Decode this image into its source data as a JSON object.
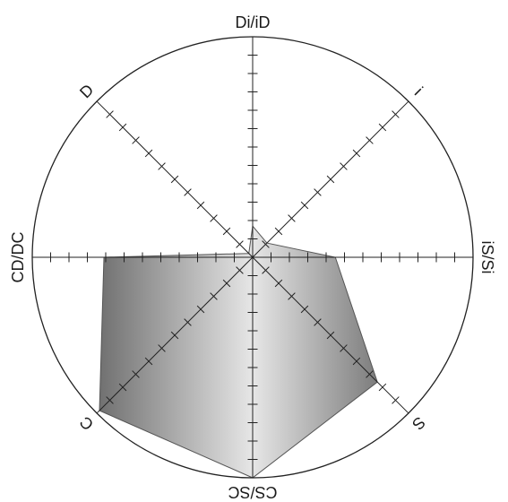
{
  "chart_data": {
    "type": "radar",
    "title": "",
    "axes": [
      {
        "label": "Di/iD",
        "angle_deg": 0
      },
      {
        "label": "i",
        "angle_deg": 45
      },
      {
        "label": "iS/Si",
        "angle_deg": 90
      },
      {
        "label": "S",
        "angle_deg": 135
      },
      {
        "label": "CS/SC",
        "angle_deg": 180
      },
      {
        "label": "C",
        "angle_deg": 225
      },
      {
        "label": "CD/DC",
        "angle_deg": 270
      },
      {
        "label": "D",
        "angle_deg": 315
      }
    ],
    "ticks_per_axis": 12,
    "scale_max": 12,
    "series": [
      {
        "values": [
          1.7,
          1.1,
          4.5,
          9.6,
          12,
          11.8,
          8.1,
          0.3
        ],
        "fill": "gradient-grey"
      }
    ],
    "colors": {
      "stroke": "#222222",
      "fill_dark": "#6e6e6e",
      "fill_light": "#e4e4e4"
    }
  }
}
